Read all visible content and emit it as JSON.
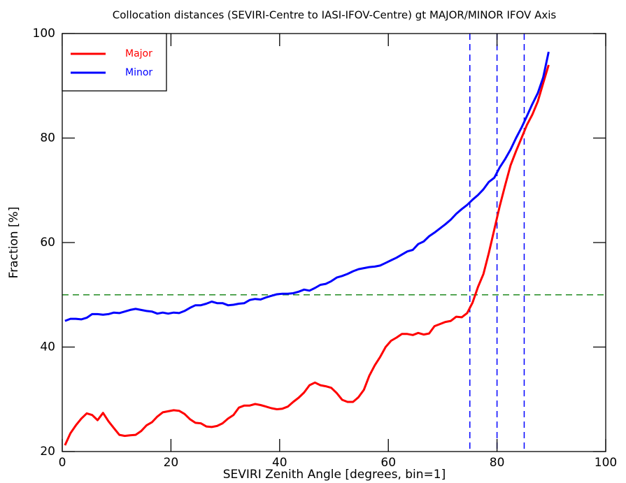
{
  "chart_data": {
    "type": "line",
    "title": "Collocation distances (SEVIRI-Centre to IASI-IFOV-Centre) gt MAJOR/MINOR IFOV Axis",
    "xlabel": "SEVIRI Zenith Angle [degrees, bin=1]",
    "ylabel": "Fraction [%]",
    "xlim": [
      0,
      100
    ],
    "ylim": [
      20,
      100
    ],
    "xticks": [
      0,
      20,
      40,
      60,
      80,
      100
    ],
    "yticks": [
      20,
      40,
      60,
      80,
      100
    ],
    "legend": "upper left",
    "hlines": [
      {
        "value": 50,
        "color": "#228b22"
      }
    ],
    "vlines": [
      {
        "value": 75,
        "color": "#0000ff"
      },
      {
        "value": 80,
        "color": "#0000ff"
      },
      {
        "value": 85,
        "color": "#0000ff"
      }
    ],
    "x": [
      0.5,
      1.5,
      2.5,
      3.5,
      4.5,
      5.5,
      6.5,
      7.5,
      8.5,
      9.5,
      10.5,
      11.5,
      12.5,
      13.5,
      14.5,
      15.5,
      16.5,
      17.5,
      18.5,
      19.5,
      20.5,
      21.5,
      22.5,
      23.5,
      24.5,
      25.5,
      26.5,
      27.5,
      28.5,
      29.5,
      30.5,
      31.5,
      32.5,
      33.5,
      34.5,
      35.5,
      36.5,
      37.5,
      38.5,
      39.5,
      40.5,
      41.5,
      42.5,
      43.5,
      44.5,
      45.5,
      46.5,
      47.5,
      48.5,
      49.5,
      50.5,
      51.5,
      52.5,
      53.5,
      54.5,
      55.5,
      56.5,
      57.5,
      58.5,
      59.5,
      60.5,
      61.5,
      62.5,
      63.5,
      64.5,
      65.5,
      66.5,
      67.5,
      68.5,
      69.5,
      70.5,
      71.5,
      72.5,
      73.5,
      74.5,
      75.5,
      76.5,
      77.5,
      78.5,
      79.5,
      80.5,
      81.5,
      82.5,
      83.5,
      84.5,
      85.5,
      86.5,
      87.5,
      88.5,
      89.5
    ],
    "series": [
      {
        "name": "Major",
        "color": "#ff0000",
        "values": [
          21.2,
          23.5,
          25,
          26.3,
          27.3,
          27,
          26,
          27.4,
          25.8,
          24.5,
          23.2,
          23,
          23.1,
          23.2,
          23.9,
          25,
          25.6,
          26.7,
          27.5,
          27.7,
          27.9,
          27.8,
          27.2,
          26.2,
          25.5,
          25.4,
          24.8,
          24.7,
          24.9,
          25.4,
          26.3,
          27,
          28.4,
          28.8,
          28.8,
          29.1,
          28.9,
          28.6,
          28.3,
          28.1,
          28.2,
          28.6,
          29.5,
          30.3,
          31.3,
          32.7,
          33.2,
          32.7,
          32.5,
          32.2,
          31.2,
          29.9,
          29.5,
          29.5,
          30.4,
          31.8,
          34.5,
          36.5,
          38.1,
          40,
          41.2,
          41.8,
          42.5,
          42.5,
          42.3,
          42.7,
          42.4,
          42.6,
          44,
          44.4,
          44.8,
          45,
          45.8,
          45.7,
          46.5,
          48.5,
          51.5,
          54,
          58,
          62.5,
          67,
          71,
          74.8,
          77.5,
          80,
          82.5,
          84.5,
          87,
          90.5,
          94
        ]
      },
      {
        "name": "Minor",
        "color": "#0000ff",
        "values": [
          45,
          45.4,
          45.4,
          45.3,
          45.6,
          46.3,
          46.3,
          46.2,
          46.3,
          46.6,
          46.5,
          46.8,
          47.1,
          47.3,
          47.1,
          46.9,
          46.8,
          46.4,
          46.6,
          46.4,
          46.6,
          46.5,
          46.9,
          47.5,
          48,
          48,
          48.3,
          48.7,
          48.4,
          48.4,
          48,
          48.1,
          48.3,
          48.4,
          49,
          49.2,
          49.1,
          49.5,
          49.8,
          50.1,
          50.2,
          50.2,
          50.3,
          50.6,
          51,
          50.8,
          51.3,
          51.9,
          52.1,
          52.6,
          53.3,
          53.6,
          54,
          54.5,
          54.9,
          55.1,
          55.3,
          55.4,
          55.6,
          56.1,
          56.6,
          57.1,
          57.7,
          58.3,
          58.6,
          59.7,
          60.2,
          61.2,
          61.9,
          62.7,
          63.5,
          64.4,
          65.5,
          66.4,
          67.2,
          68.2,
          69.1,
          70.2,
          71.6,
          72.4,
          74.4,
          76,
          77.8,
          80,
          82,
          84.2,
          86.5,
          88.6,
          91.6,
          96.5
        ]
      }
    ]
  }
}
